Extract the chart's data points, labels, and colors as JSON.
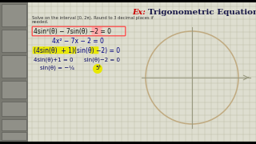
{
  "title_ex": "Ex: ",
  "title_main": "Trigonometric Equations",
  "subtitle1": "Solve on the interval [0, 2π). Round to 3 decimal places if",
  "subtitle2": "needed.",
  "eq1": "4sin²(θ) − 7sin(θ) ",
  "eq1b": "−2",
  "eq1c": " = 0",
  "eq2": "4x² − 7x − 2 = 0",
  "eq3a": "(4sin(θ)",
  "eq3b": " + 1",
  "eq3c": ")(sin(θ) ",
  "eq3d": "−2",
  "eq3e": ") = 0",
  "eq4a": "4sin(θ)+1 = 0",
  "eq4b": "sin(θ)−2 = 0",
  "eq5a": "sin(θ) = −¼",
  "eq5b": "5¹",
  "bg_color": "#deded0",
  "grid_color": "#c0c0a8",
  "title_ex_color": "#cc0000",
  "title_main_color": "#1a1a4a",
  "text_color": "#111111",
  "highlight_yellow": "#e8e800",
  "highlight_pink": "#ff8888",
  "circle_color": "#c0aa80",
  "axes_color": "#999980",
  "sidebar_color": "#787870",
  "thumb_color": "#909088",
  "eq1_box_color": "#ff4444",
  "eq2_color": "#000088",
  "eq3_color": "#000080",
  "eq4_color": "#000060"
}
